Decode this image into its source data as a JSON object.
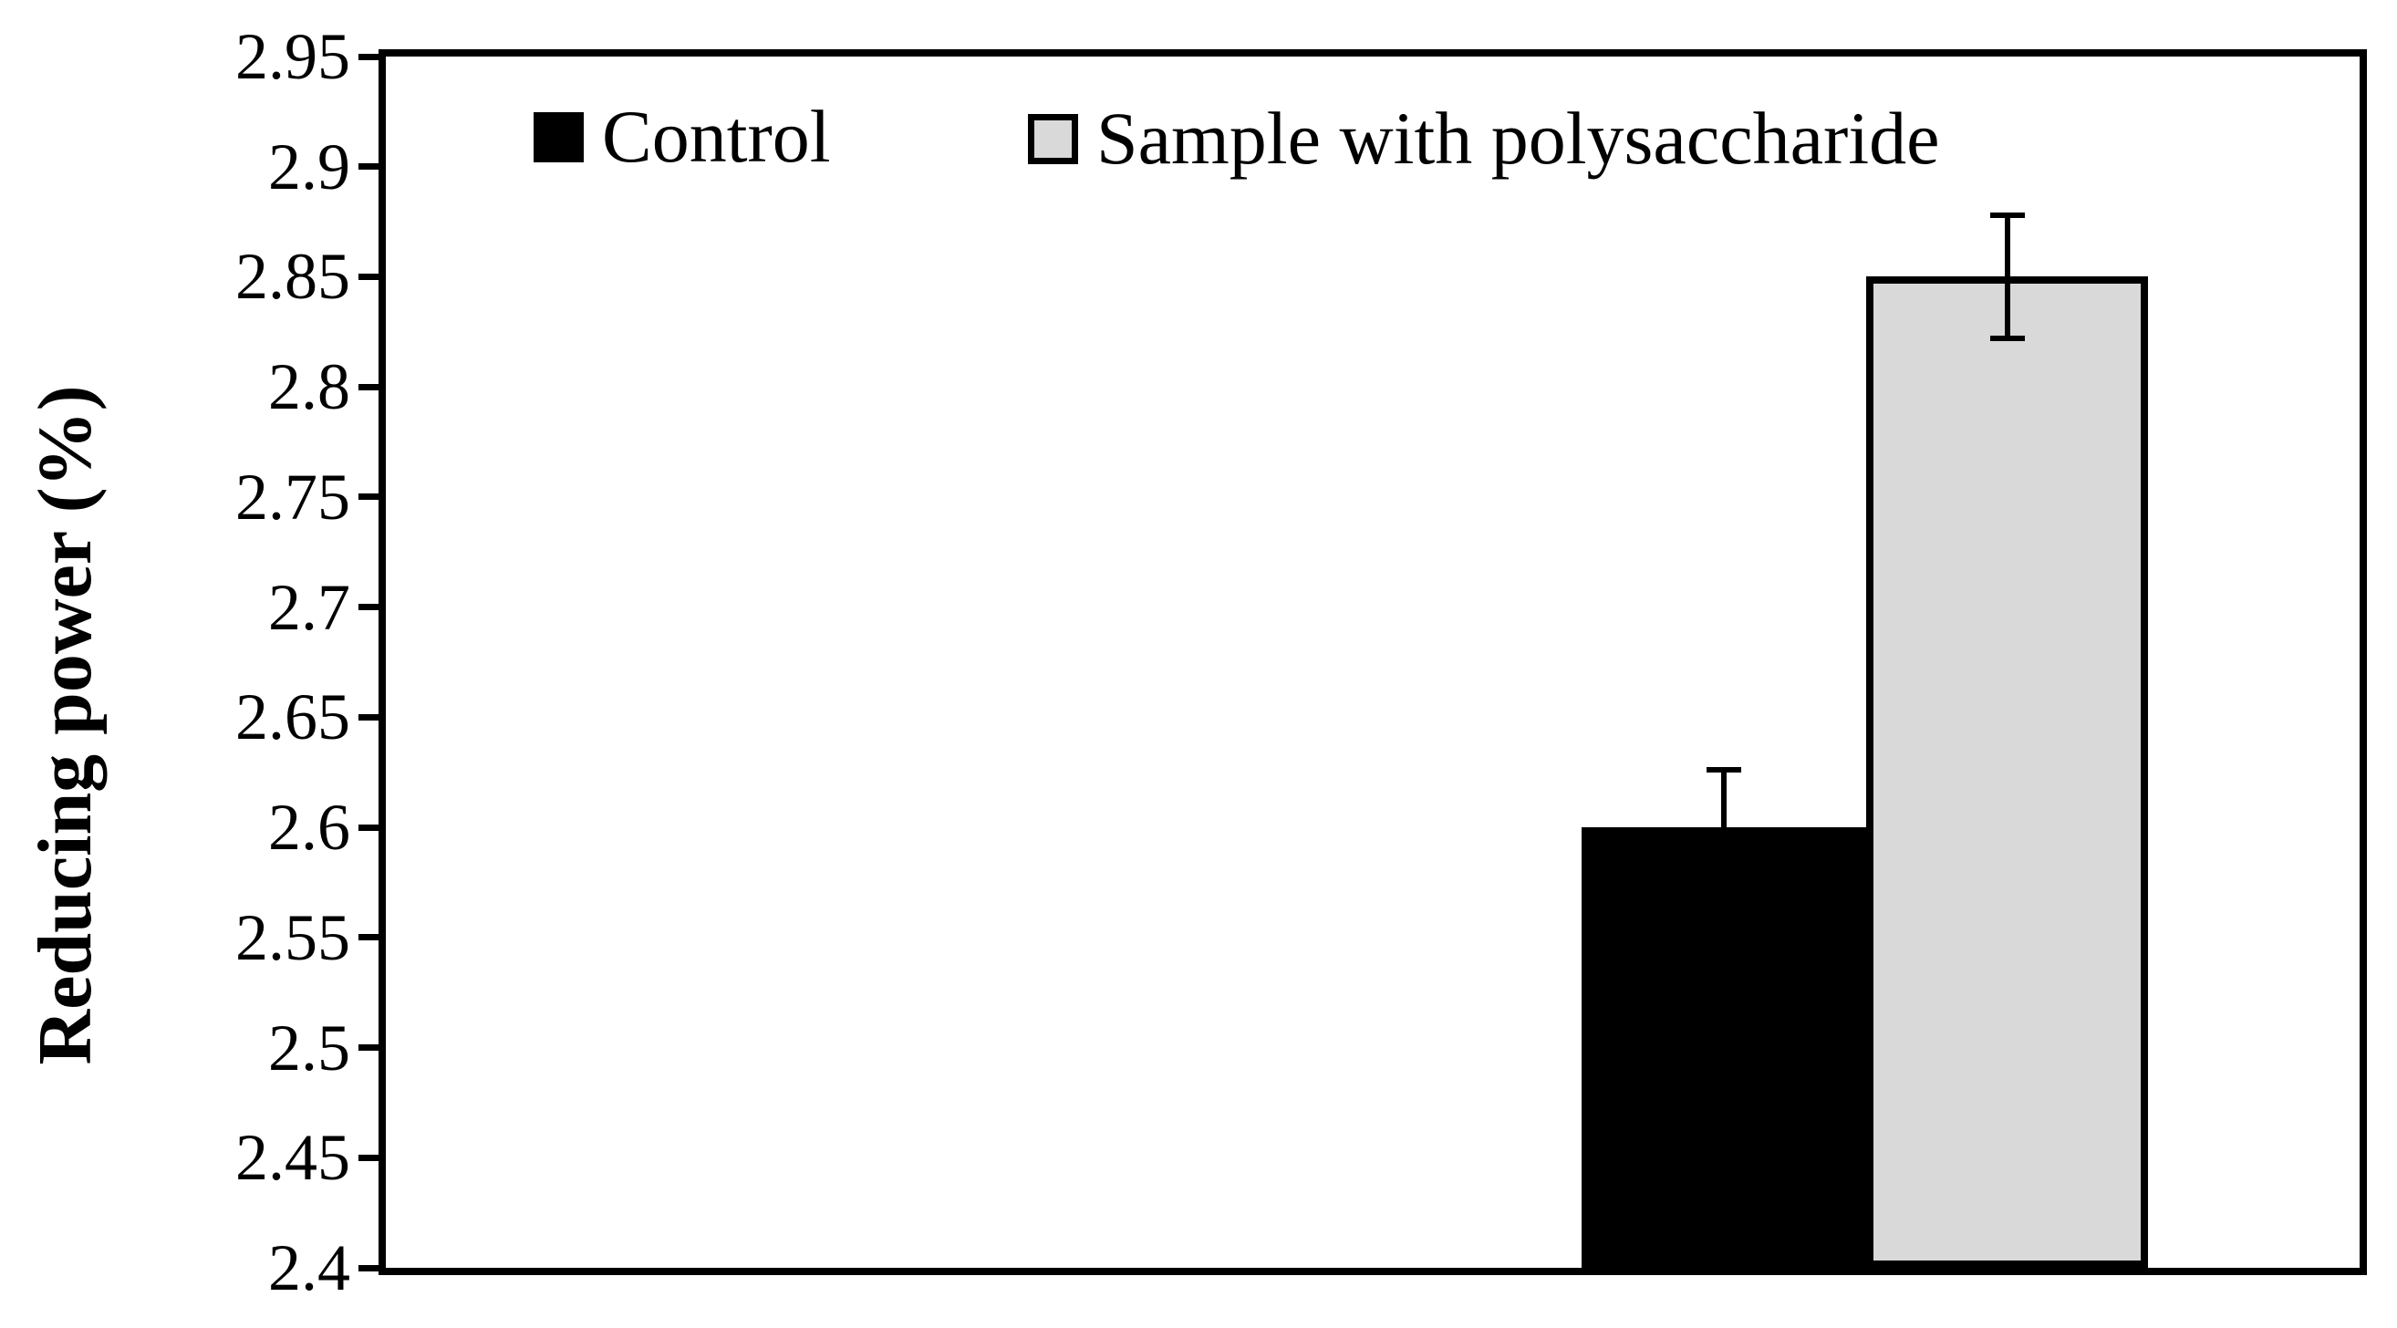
{
  "chart_data": {
    "type": "bar",
    "title": "",
    "xlabel": "",
    "ylabel": "Reducing power (%)",
    "ylim": [
      2.4,
      2.95
    ],
    "ytick_step": 0.05,
    "ytick_labels": [
      "2.95",
      "2.9",
      "2.85",
      "2.8",
      "2.75",
      "2.7",
      "2.65",
      "2.6",
      "2.55",
      "2.5",
      "2.45",
      "2.4"
    ],
    "grid": false,
    "legend_position": "top-inside",
    "categories": [
      ""
    ],
    "series": [
      {
        "name": "Control",
        "values": [
          2.6
        ],
        "error": [
          0.026
        ],
        "fill": "#000000",
        "border": "#000000"
      },
      {
        "name": "Sample with polysaccharide",
        "values": [
          2.85
        ],
        "error": [
          0.028
        ],
        "fill": "#d9d9d9",
        "border": "#000000"
      }
    ],
    "axis_color": "#000000",
    "background": "#ffffff"
  }
}
